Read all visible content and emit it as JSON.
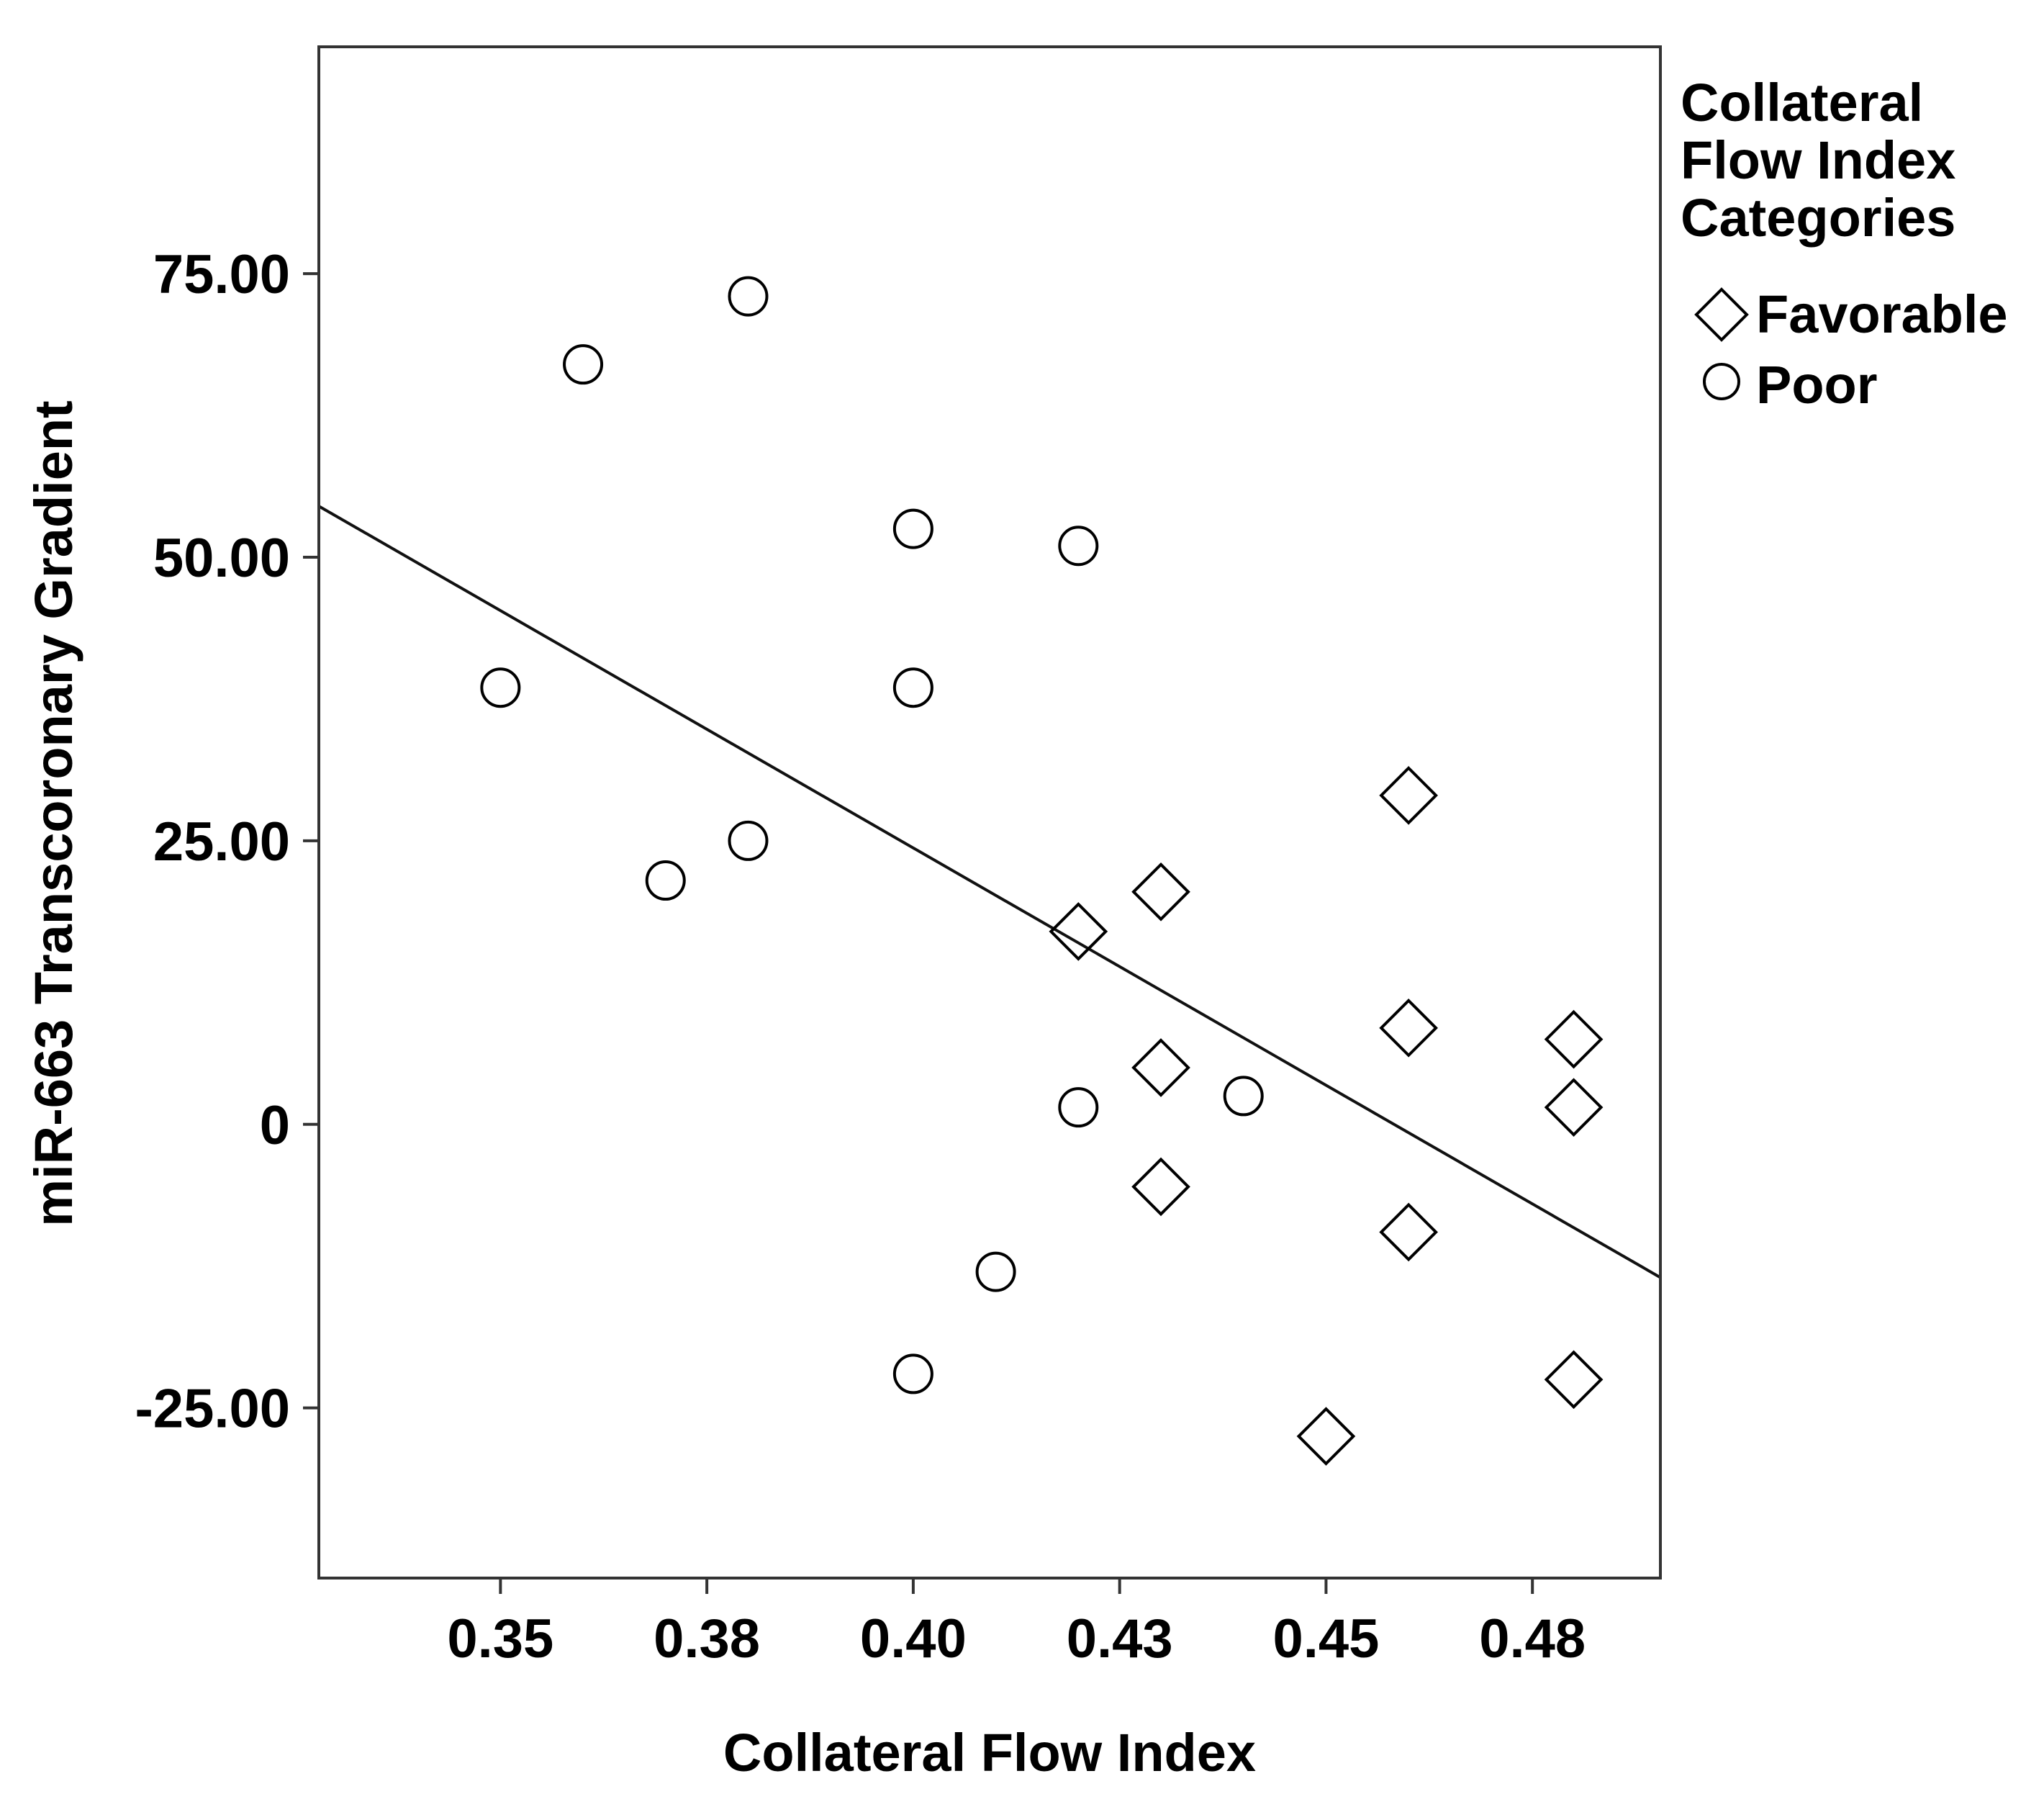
{
  "chart_data": {
    "type": "scatter",
    "title": "",
    "xlabel": "Collateral Flow Index",
    "ylabel": "miR-663 Transcoronary Gradient",
    "xlim": [
      0.328,
      0.4905
    ],
    "ylim": [
      -40,
      95
    ],
    "x_ticks": [
      0.35,
      0.375,
      0.4,
      0.425,
      0.45,
      0.475
    ],
    "x_tick_labels": [
      "0.35",
      "0.38",
      "0.40",
      "0.43",
      "0.45",
      "0.48"
    ],
    "y_ticks": [
      -25,
      0,
      25,
      50,
      75
    ],
    "y_tick_labels": [
      "-25.00",
      "0",
      "25.00",
      "50.00",
      "75.00"
    ],
    "grid": false,
    "legend": {
      "title": "Collateral Flow Index Categories",
      "title_lines": [
        "Collateral",
        "Flow Index",
        "Categories"
      ],
      "placement": "right",
      "entries": [
        {
          "label": "Favorable",
          "marker": "diamond"
        },
        {
          "label": "Poor",
          "marker": "circle"
        }
      ]
    },
    "series": [
      {
        "name": "Favorable",
        "marker": "diamond",
        "points": [
          {
            "x": 0.42,
            "y": 17
          },
          {
            "x": 0.43,
            "y": 20.5
          },
          {
            "x": 0.43,
            "y": 5
          },
          {
            "x": 0.43,
            "y": -5.5
          },
          {
            "x": 0.45,
            "y": -27.5
          },
          {
            "x": 0.46,
            "y": 29
          },
          {
            "x": 0.46,
            "y": 8.5
          },
          {
            "x": 0.46,
            "y": -9.5
          },
          {
            "x": 0.48,
            "y": 7.5
          },
          {
            "x": 0.48,
            "y": 1.5
          },
          {
            "x": 0.48,
            "y": -22.5
          }
        ]
      },
      {
        "name": "Poor",
        "marker": "circle",
        "points": [
          {
            "x": 0.35,
            "y": 38.5
          },
          {
            "x": 0.36,
            "y": 67
          },
          {
            "x": 0.37,
            "y": 21.5
          },
          {
            "x": 0.38,
            "y": 73
          },
          {
            "x": 0.38,
            "y": 25
          },
          {
            "x": 0.4,
            "y": 52.5
          },
          {
            "x": 0.4,
            "y": 38.5
          },
          {
            "x": 0.4,
            "y": -22
          },
          {
            "x": 0.41,
            "y": -13
          },
          {
            "x": 0.42,
            "y": 51
          },
          {
            "x": 0.42,
            "y": 1.5
          },
          {
            "x": 0.44,
            "y": 2.5
          }
        ]
      }
    ],
    "fit_line": {
      "x": [
        0.328,
        0.4905
      ],
      "y": [
        54.5,
        -13.5
      ]
    }
  }
}
